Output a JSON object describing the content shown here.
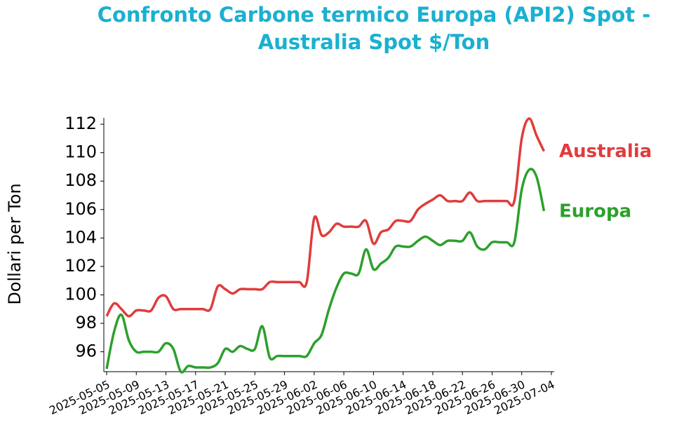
{
  "chart_data": {
    "type": "line",
    "title": "Confronto Carbone termico Europa (API2) Spot - Australia Spot $/Ton",
    "y_label": "Dollari per Ton",
    "x": [
      "2025-05-05",
      "2025-05-06",
      "2025-05-07",
      "2025-05-08",
      "2025-05-09",
      "2025-05-10",
      "2025-05-11",
      "2025-05-12",
      "2025-05-13",
      "2025-05-14",
      "2025-05-15",
      "2025-05-16",
      "2025-05-17",
      "2025-05-18",
      "2025-05-19",
      "2025-05-20",
      "2025-05-21",
      "2025-05-22",
      "2025-05-23",
      "2025-05-24",
      "2025-05-25",
      "2025-05-26",
      "2025-05-27",
      "2025-05-28",
      "2025-05-29",
      "2025-05-30",
      "2025-05-31",
      "2025-06-01",
      "2025-06-02",
      "2025-06-03",
      "2025-06-04",
      "2025-06-05",
      "2025-06-06",
      "2025-06-07",
      "2025-06-08",
      "2025-06-09",
      "2025-06-10",
      "2025-06-11",
      "2025-06-12",
      "2025-06-13",
      "2025-06-14",
      "2025-06-15",
      "2025-06-16",
      "2025-06-17",
      "2025-06-18",
      "2025-06-19",
      "2025-06-20",
      "2025-06-21",
      "2025-06-22",
      "2025-06-23",
      "2025-06-24",
      "2025-06-25",
      "2025-06-26",
      "2025-06-27",
      "2025-06-28",
      "2025-06-29",
      "2025-06-30",
      "2025-07-01",
      "2025-07-02",
      "2025-07-03"
    ],
    "series": [
      {
        "name": "Australia",
        "color": "#e03c3c",
        "values": [
          98.5,
          99.4,
          99.0,
          98.5,
          98.9,
          98.9,
          98.9,
          99.8,
          99.9,
          99.0,
          99.0,
          99.0,
          99.0,
          99.0,
          99.0,
          100.6,
          100.4,
          100.1,
          100.4,
          100.4,
          100.4,
          100.4,
          100.9,
          100.9,
          100.9,
          100.9,
          100.9,
          100.9,
          105.4,
          104.2,
          104.4,
          105.0,
          104.8,
          104.8,
          104.8,
          105.2,
          103.6,
          104.4,
          104.6,
          105.2,
          105.2,
          105.2,
          106.0,
          106.4,
          106.7,
          107.0,
          106.6,
          106.6,
          106.6,
          107.2,
          106.6,
          106.6,
          106.6,
          106.6,
          106.6,
          106.6,
          111.0,
          112.4,
          111.2,
          110.1
        ]
      },
      {
        "name": "Europa",
        "color": "#2ca02c",
        "values": [
          94.8,
          97.4,
          98.6,
          96.8,
          96.0,
          96.0,
          96.0,
          96.0,
          96.6,
          96.2,
          94.6,
          95.0,
          94.9,
          94.9,
          94.9,
          95.2,
          96.2,
          96.0,
          96.4,
          96.2,
          96.2,
          97.8,
          95.6,
          95.7,
          95.7,
          95.7,
          95.7,
          95.7,
          96.6,
          97.2,
          99.0,
          100.5,
          101.5,
          101.5,
          101.5,
          103.2,
          101.8,
          102.2,
          102.6,
          103.4,
          103.4,
          103.4,
          103.8,
          104.1,
          103.8,
          103.5,
          103.8,
          103.8,
          103.8,
          104.4,
          103.4,
          103.2,
          103.7,
          103.7,
          103.7,
          103.7,
          107.4,
          108.8,
          108.3,
          105.9
        ]
      }
    ],
    "xlim": [
      "2025-05-05",
      "2025-07-04"
    ],
    "xticks": [
      "2025-05-05",
      "2025-05-09",
      "2025-05-13",
      "2025-05-17",
      "2025-05-21",
      "2025-05-25",
      "2025-05-29",
      "2025-06-02",
      "2025-06-06",
      "2025-06-10",
      "2025-06-14",
      "2025-06-18",
      "2025-06-22",
      "2025-06-26",
      "2025-06-30",
      "2025-07-04"
    ],
    "ylim": [
      94.6,
      112.45
    ],
    "yticks": [
      96,
      98,
      100,
      102,
      104,
      106,
      108,
      110,
      112
    ],
    "grid": false
  }
}
